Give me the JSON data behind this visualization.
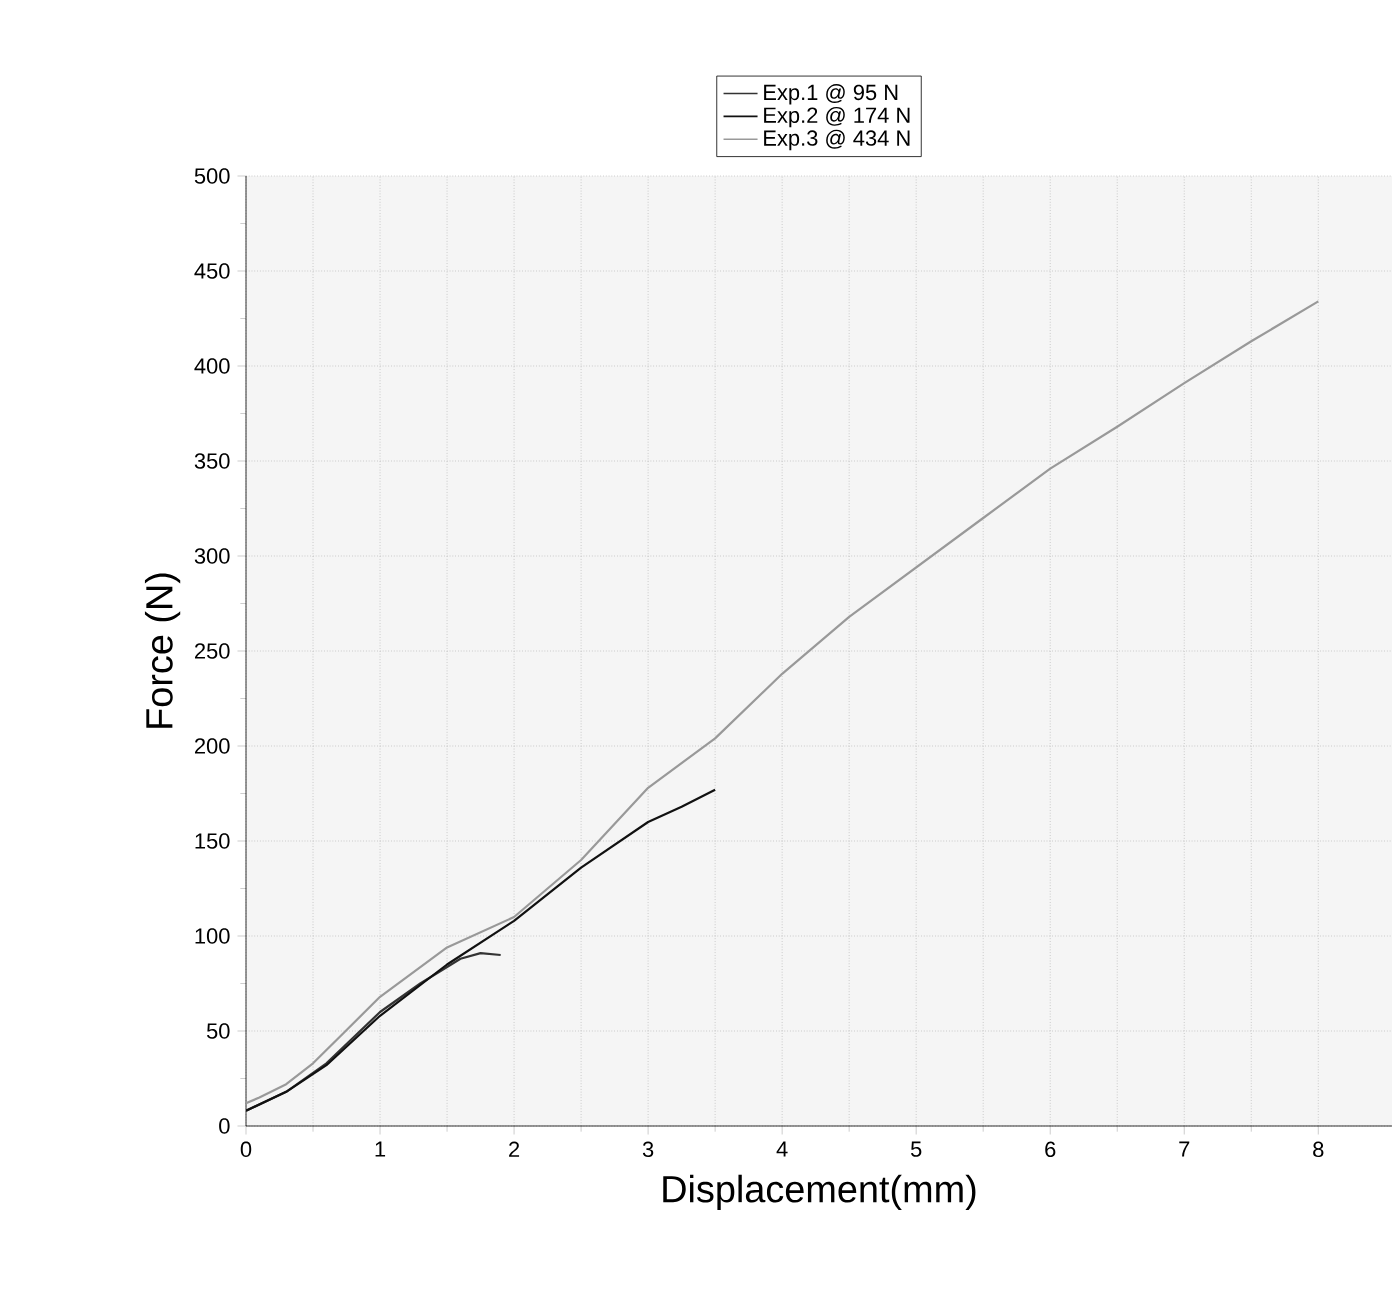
{
  "chart_data": {
    "type": "line",
    "xlabel": "Displacement(mm)",
    "ylabel": "Force (N)",
    "xlim": [
      0,
      8.55
    ],
    "xticks": [
      0,
      1,
      2,
      3,
      4,
      5,
      6,
      7,
      8
    ],
    "ylim": [
      0,
      500
    ],
    "yticks": [
      0,
      50,
      100,
      150,
      200,
      250,
      300,
      350,
      400,
      450,
      500
    ],
    "grid": true,
    "legend": "top",
    "line_style": "solid",
    "marker": "none",
    "series": [
      {
        "name": "Exp.1 @ 95 N",
        "color": "#333333",
        "x": [
          0,
          0.3,
          0.6,
          1,
          1.3,
          1.6,
          1.75,
          1.9
        ],
        "values": [
          8,
          18,
          33,
          60,
          75,
          88,
          91,
          90
        ]
      },
      {
        "name": "Exp.2 @ 174 N",
        "color": "#111111",
        "x": [
          0,
          0.3,
          0.6,
          1,
          1.5,
          2,
          2.5,
          3,
          3.25,
          3.5
        ],
        "values": [
          8,
          18,
          32,
          58,
          85,
          108,
          136,
          160,
          168,
          177
        ]
      },
      {
        "name": "Exp.3 @ 434 N",
        "color": "#999999",
        "x": [
          0,
          0.1,
          0.3,
          0.5,
          0.7,
          1,
          1.5,
          2,
          2.5,
          3,
          3.5,
          4,
          4.5,
          5,
          5.5,
          6,
          6.5,
          7,
          7.5,
          8
        ],
        "values": [
          12,
          15,
          22,
          33,
          47,
          68,
          94,
          110,
          140,
          178,
          204,
          238,
          268,
          294,
          320,
          346,
          368,
          391,
          413,
          434
        ]
      }
    ]
  }
}
